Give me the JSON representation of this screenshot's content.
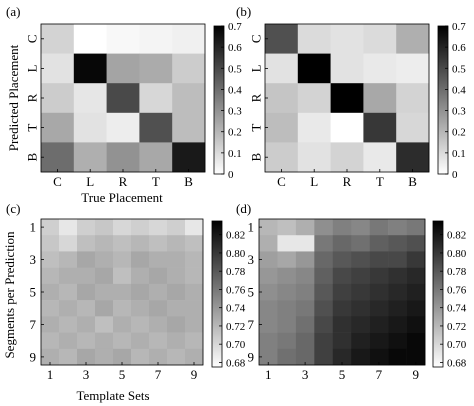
{
  "chart_data": [
    {
      "panel_label": "(a)",
      "type": "heatmap",
      "xlabel": "True Placement",
      "ylabel": "Predicted Placement",
      "x_categories": [
        "C",
        "L",
        "R",
        "T",
        "B"
      ],
      "y_categories": [
        "C",
        "L",
        "R",
        "T",
        "B"
      ],
      "values": [
        [
          0.12,
          0.0,
          0.02,
          0.03,
          0.04
        ],
        [
          0.08,
          0.68,
          0.25,
          0.23,
          0.14
        ],
        [
          0.14,
          0.07,
          0.5,
          0.11,
          0.18
        ],
        [
          0.24,
          0.08,
          0.05,
          0.48,
          0.18
        ],
        [
          0.4,
          0.22,
          0.3,
          0.24,
          0.63
        ]
      ],
      "colorbar": {
        "min": 0,
        "max": 0.7,
        "ticks": [
          "0.7",
          "0.6",
          "0.5",
          "0.4",
          "0.3",
          "0.2",
          "0.1",
          "0"
        ]
      },
      "colormap": "white-to-black"
    },
    {
      "panel_label": "(b)",
      "type": "heatmap",
      "xlabel": "",
      "ylabel": "",
      "x_categories": [
        "C",
        "L",
        "R",
        "T",
        "B"
      ],
      "y_categories": [
        "C",
        "L",
        "R",
        "T",
        "B"
      ],
      "values": [
        [
          0.48,
          0.1,
          0.08,
          0.1,
          0.22
        ],
        [
          0.08,
          0.7,
          0.08,
          0.06,
          0.05
        ],
        [
          0.16,
          0.12,
          0.72,
          0.24,
          0.12
        ],
        [
          0.18,
          0.06,
          0.0,
          0.55,
          0.11
        ],
        [
          0.14,
          0.08,
          0.12,
          0.06,
          0.58
        ]
      ],
      "colorbar": {
        "min": 0,
        "max": 0.7,
        "ticks": [
          "0.7",
          "0.6",
          "0.5",
          "0.4",
          "0.3",
          "0.2",
          "0.1",
          "0"
        ]
      },
      "colormap": "white-to-black"
    },
    {
      "panel_label": "(c)",
      "type": "heatmap",
      "xlabel": "Template Sets",
      "ylabel": "Segments per Prediction",
      "x_tick_labels": [
        "1",
        "3",
        "5",
        "7",
        "9"
      ],
      "y_tick_labels": [
        "1",
        "3",
        "5",
        "7",
        "9"
      ],
      "x_values": [
        1,
        2,
        3,
        4,
        5,
        6,
        7,
        8,
        9
      ],
      "y_values": [
        1,
        2,
        3,
        4,
        5,
        6,
        7,
        8,
        9
      ],
      "values": [
        [
          0.705,
          0.69,
          0.705,
          0.71,
          0.7,
          0.705,
          0.7,
          0.705,
          0.69
        ],
        [
          0.71,
          0.7,
          0.715,
          0.72,
          0.715,
          0.72,
          0.715,
          0.72,
          0.715
        ],
        [
          0.715,
          0.72,
          0.73,
          0.725,
          0.72,
          0.73,
          0.725,
          0.725,
          0.72
        ],
        [
          0.72,
          0.725,
          0.725,
          0.73,
          0.715,
          0.725,
          0.73,
          0.725,
          0.72
        ],
        [
          0.725,
          0.72,
          0.73,
          0.725,
          0.725,
          0.73,
          0.725,
          0.73,
          0.725
        ],
        [
          0.72,
          0.725,
          0.72,
          0.73,
          0.72,
          0.725,
          0.73,
          0.725,
          0.725
        ],
        [
          0.725,
          0.72,
          0.725,
          0.715,
          0.725,
          0.72,
          0.725,
          0.73,
          0.725
        ],
        [
          0.72,
          0.725,
          0.72,
          0.725,
          0.72,
          0.725,
          0.72,
          0.725,
          0.72
        ],
        [
          0.725,
          0.72,
          0.73,
          0.725,
          0.73,
          0.72,
          0.725,
          0.72,
          0.725
        ]
      ],
      "colorbar": {
        "min": 0.675,
        "max": 0.835,
        "ticks": [
          "0.82",
          "0.80",
          "0.78",
          "0.76",
          "0.74",
          "0.72",
          "0.70",
          "0.68"
        ]
      },
      "colormap": "white-to-black"
    },
    {
      "panel_label": "(d)",
      "type": "heatmap",
      "xlabel": "",
      "ylabel": "",
      "x_tick_labels": [
        "1",
        "3",
        "5",
        "7",
        "9"
      ],
      "y_tick_labels": [
        "1",
        "3",
        "5",
        "7",
        "9"
      ],
      "x_values": [
        1,
        2,
        3,
        4,
        5,
        6,
        7,
        8,
        9
      ],
      "y_values": [
        1,
        2,
        3,
        4,
        5,
        6,
        7,
        8,
        9
      ],
      "values": [
        [
          0.72,
          0.715,
          0.725,
          0.745,
          0.755,
          0.75,
          0.76,
          0.755,
          0.76
        ],
        [
          0.725,
          0.69,
          0.69,
          0.76,
          0.77,
          0.765,
          0.775,
          0.78,
          0.785
        ],
        [
          0.735,
          0.73,
          0.74,
          0.77,
          0.78,
          0.785,
          0.79,
          0.79,
          0.8
        ],
        [
          0.74,
          0.745,
          0.75,
          0.775,
          0.79,
          0.795,
          0.8,
          0.805,
          0.81
        ],
        [
          0.745,
          0.75,
          0.755,
          0.78,
          0.795,
          0.8,
          0.805,
          0.81,
          0.815
        ],
        [
          0.75,
          0.755,
          0.76,
          0.785,
          0.8,
          0.805,
          0.81,
          0.815,
          0.82
        ],
        [
          0.75,
          0.755,
          0.765,
          0.79,
          0.805,
          0.81,
          0.815,
          0.82,
          0.825
        ],
        [
          0.755,
          0.76,
          0.77,
          0.795,
          0.805,
          0.815,
          0.82,
          0.825,
          0.83
        ],
        [
          0.755,
          0.765,
          0.77,
          0.795,
          0.81,
          0.82,
          0.825,
          0.83,
          0.83
        ]
      ],
      "colorbar": {
        "min": 0.675,
        "max": 0.835,
        "ticks": [
          "0.82",
          "0.80",
          "0.78",
          "0.76",
          "0.74",
          "0.72",
          "0.70",
          "0.68"
        ]
      },
      "colormap": "white-to-black"
    }
  ]
}
